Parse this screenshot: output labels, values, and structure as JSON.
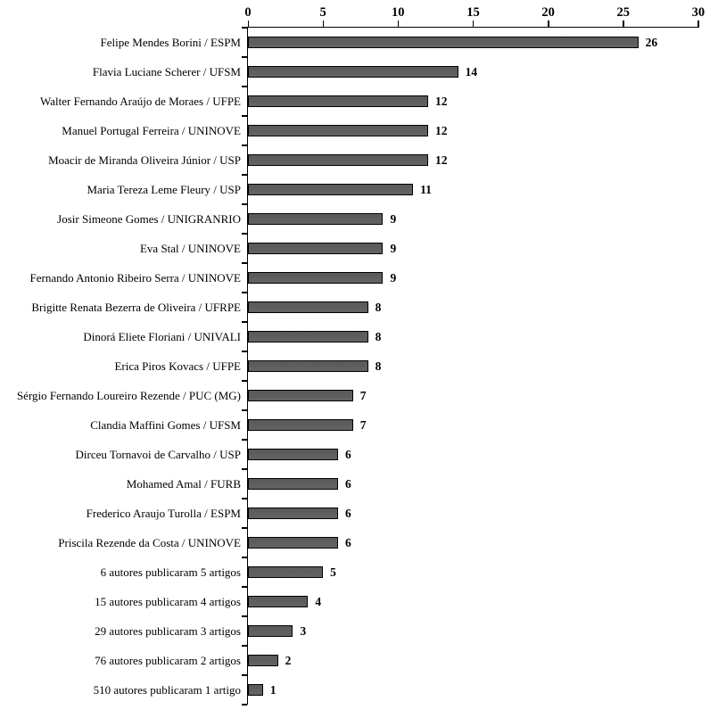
{
  "chart_data": {
    "type": "bar",
    "orientation": "horizontal",
    "title": "",
    "xlabel": "",
    "ylabel": "",
    "categories": [
      "Felipe Mendes Borini / ESPM",
      "Flavia Luciane Scherer / UFSM",
      "Walter Fernando Araújo de Moraes / UFPE",
      "Manuel Portugal Ferreira / UNINOVE",
      "Moacir de Miranda Oliveira Júnior / USP",
      "Maria Tereza Leme Fleury / USP",
      "Josir Simeone Gomes / UNIGRANRIO",
      "Eva Stal / UNINOVE",
      "Fernando Antonio Ribeiro Serra / UNINOVE",
      "Brigitte Renata Bezerra de Oliveira / UFRPE",
      "Dinorá Eliete Floriani / UNIVALI",
      "Erica Piros Kovacs / UFPE",
      "Sérgio Fernando Loureiro Rezende / PUC (MG)",
      "Clandia Maffini Gomes / UFSM",
      "Dirceu Tornavoi de Carvalho / USP",
      "Mohamed Amal / FURB",
      "Frederico Araujo Turolla / ESPM",
      "Priscila Rezende da Costa / UNINOVE",
      "6 autores publicaram 5 artigos",
      "15 autores publicaram 4 artigos",
      "29 autores publicaram 3 artigos",
      "76 autores publicaram 2 artigos",
      "510 autores publicaram 1 artigo"
    ],
    "values": [
      26,
      14,
      12,
      12,
      12,
      11,
      9,
      9,
      9,
      8,
      8,
      8,
      7,
      7,
      6,
      6,
      6,
      6,
      5,
      4,
      3,
      2,
      1
    ],
    "value_labels": [
      "26",
      "14",
      "12",
      "12",
      "12",
      "11",
      "9",
      "9",
      "9",
      "8",
      "8",
      "8",
      "7",
      "7",
      "6",
      "6",
      "6",
      "6",
      "5",
      "4",
      "3",
      "2",
      "1"
    ],
    "x_ticks": [
      "0",
      "5",
      "10",
      "15",
      "20",
      "25",
      "30"
    ],
    "x_tick_values": [
      0,
      5,
      10,
      15,
      20,
      25,
      30
    ],
    "xlim": [
      0,
      30
    ],
    "axis_position": "top",
    "grid": false,
    "legend": "none",
    "colors": {
      "bar_fill": "#595959",
      "bar_border": "#000000",
      "axis": "#000000",
      "text": "#000000",
      "background": "#ffffff"
    }
  }
}
